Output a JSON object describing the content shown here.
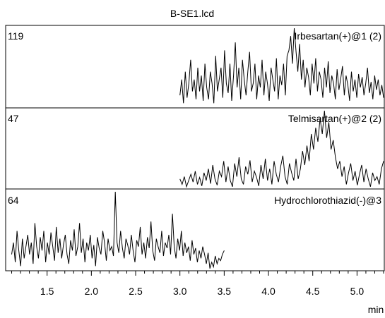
{
  "chart_data": {
    "type": "line",
    "title": "B-SE1.lcd",
    "xlabel": "min",
    "xlim": [
      1.04,
      5.3
    ],
    "x_ticks": [
      "1.5",
      "2.0",
      "2.5",
      "3.0",
      "3.5",
      "4.0",
      "4.5",
      "5.0"
    ],
    "panels": [
      {
        "name": "Irbesartan(+)@1 (2)",
        "ymax_label": "119",
        "x_start": 3.0,
        "x_end": 5.3,
        "values": [
          0.15,
          0.35,
          0.05,
          0.45,
          0.12,
          0.3,
          0.6,
          0.2,
          0.35,
          0.1,
          0.5,
          0.2,
          0.4,
          0.08,
          0.55,
          0.25,
          0.1,
          0.45,
          0.3,
          0.05,
          0.65,
          0.2,
          0.35,
          0.5,
          0.12,
          0.72,
          0.3,
          0.18,
          0.55,
          0.08,
          0.4,
          0.82,
          0.25,
          0.5,
          0.1,
          0.6,
          0.35,
          0.15,
          0.45,
          0.7,
          0.2,
          0.3,
          0.55,
          0.1,
          0.4,
          0.25,
          0.6,
          0.15,
          0.45,
          0.3,
          0.08,
          0.5,
          0.35,
          0.2,
          0.62,
          0.1,
          0.4,
          0.28,
          0.55,
          0.15,
          0.65,
          0.72,
          0.9,
          0.55,
          1.0,
          0.7,
          0.45,
          0.8,
          0.35,
          0.6,
          0.25,
          0.5,
          0.38,
          0.15,
          0.55,
          0.3,
          0.62,
          0.2,
          0.45,
          0.35,
          0.12,
          0.5,
          0.25,
          0.58,
          0.18,
          0.4,
          0.3,
          0.1,
          0.48,
          0.22,
          0.36,
          0.52,
          0.15,
          0.4,
          0.28,
          0.08,
          0.45,
          0.2,
          0.35,
          0.12,
          0.42,
          0.25,
          0.38,
          0.15,
          0.3,
          0.5,
          0.18,
          0.32,
          0.1,
          0.4,
          0.22,
          0.35,
          0.15,
          0.28,
          0.12
        ]
      },
      {
        "name": "Telmisartan(+)@2 (2)",
        "ymax_label": "47",
        "x_start": 3.0,
        "x_end": 5.3,
        "values": [
          0.12,
          0.05,
          0.15,
          0.02,
          0.1,
          0.18,
          0.08,
          0.22,
          0.05,
          0.14,
          0.03,
          0.2,
          0.1,
          0.25,
          0.06,
          0.3,
          0.12,
          0.04,
          0.22,
          0.15,
          0.35,
          0.08,
          0.28,
          0.1,
          0.02,
          0.32,
          0.15,
          0.4,
          0.12,
          0.05,
          0.28,
          0.18,
          0.36,
          0.08,
          0.22,
          0.14,
          0.03,
          0.3,
          0.12,
          0.38,
          0.1,
          0.25,
          0.05,
          0.35,
          0.18,
          0.08,
          0.28,
          0.42,
          0.15,
          0.05,
          0.32,
          0.2,
          0.1,
          0.38,
          0.12,
          0.25,
          0.48,
          0.3,
          0.55,
          0.35,
          0.7,
          0.5,
          0.78,
          0.6,
          0.9,
          0.7,
          1.0,
          0.65,
          0.85,
          0.5,
          0.62,
          0.4,
          0.25,
          0.35,
          0.15,
          0.28,
          0.05,
          0.2,
          0.32,
          0.1,
          0.22,
          0.04,
          0.18,
          0.3,
          0.08,
          0.25,
          0.12,
          0.02,
          0.2,
          0.1,
          0.15,
          0.05,
          0.25,
          0.35
        ]
      },
      {
        "name": "Hydrochlorothiazid(-)@3",
        "ymax_label": "64",
        "x_start": 1.1,
        "x_end": 3.5,
        "values": [
          0.2,
          0.35,
          0.1,
          0.5,
          0.25,
          0.05,
          0.4,
          0.15,
          0.3,
          0.45,
          0.2,
          0.35,
          0.08,
          0.6,
          0.3,
          0.15,
          0.42,
          0.25,
          0.5,
          0.1,
          0.35,
          0.2,
          0.48,
          0.3,
          0.12,
          0.55,
          0.22,
          0.4,
          0.15,
          0.32,
          0.45,
          0.2,
          0.08,
          0.38,
          0.25,
          0.52,
          0.18,
          0.3,
          0.6,
          0.22,
          0.4,
          0.1,
          0.35,
          0.25,
          0.45,
          0.15,
          0.32,
          0.05,
          0.42,
          0.28,
          0.2,
          0.5,
          0.35,
          0.12,
          0.4,
          0.25,
          0.3,
          0.18,
          1.0,
          0.35,
          0.22,
          0.5,
          0.28,
          0.15,
          0.4,
          0.32,
          0.2,
          0.45,
          0.25,
          0.1,
          0.38,
          0.3,
          0.55,
          0.2,
          0.35,
          0.15,
          0.42,
          0.28,
          0.62,
          0.25,
          0.12,
          0.4,
          0.3,
          0.22,
          0.5,
          0.18,
          0.35,
          0.28,
          0.45,
          0.2,
          0.72,
          0.3,
          0.15,
          0.4,
          0.25,
          0.5,
          0.18,
          0.35,
          0.22,
          0.3,
          0.12,
          0.38,
          0.2,
          0.28,
          0.1,
          0.25,
          0.15,
          0.3,
          0.2,
          0.08,
          0.22,
          0.02,
          0.1,
          0.04,
          0.18,
          0.08,
          0.15,
          0.12,
          0.2,
          0.25
        ]
      }
    ]
  }
}
